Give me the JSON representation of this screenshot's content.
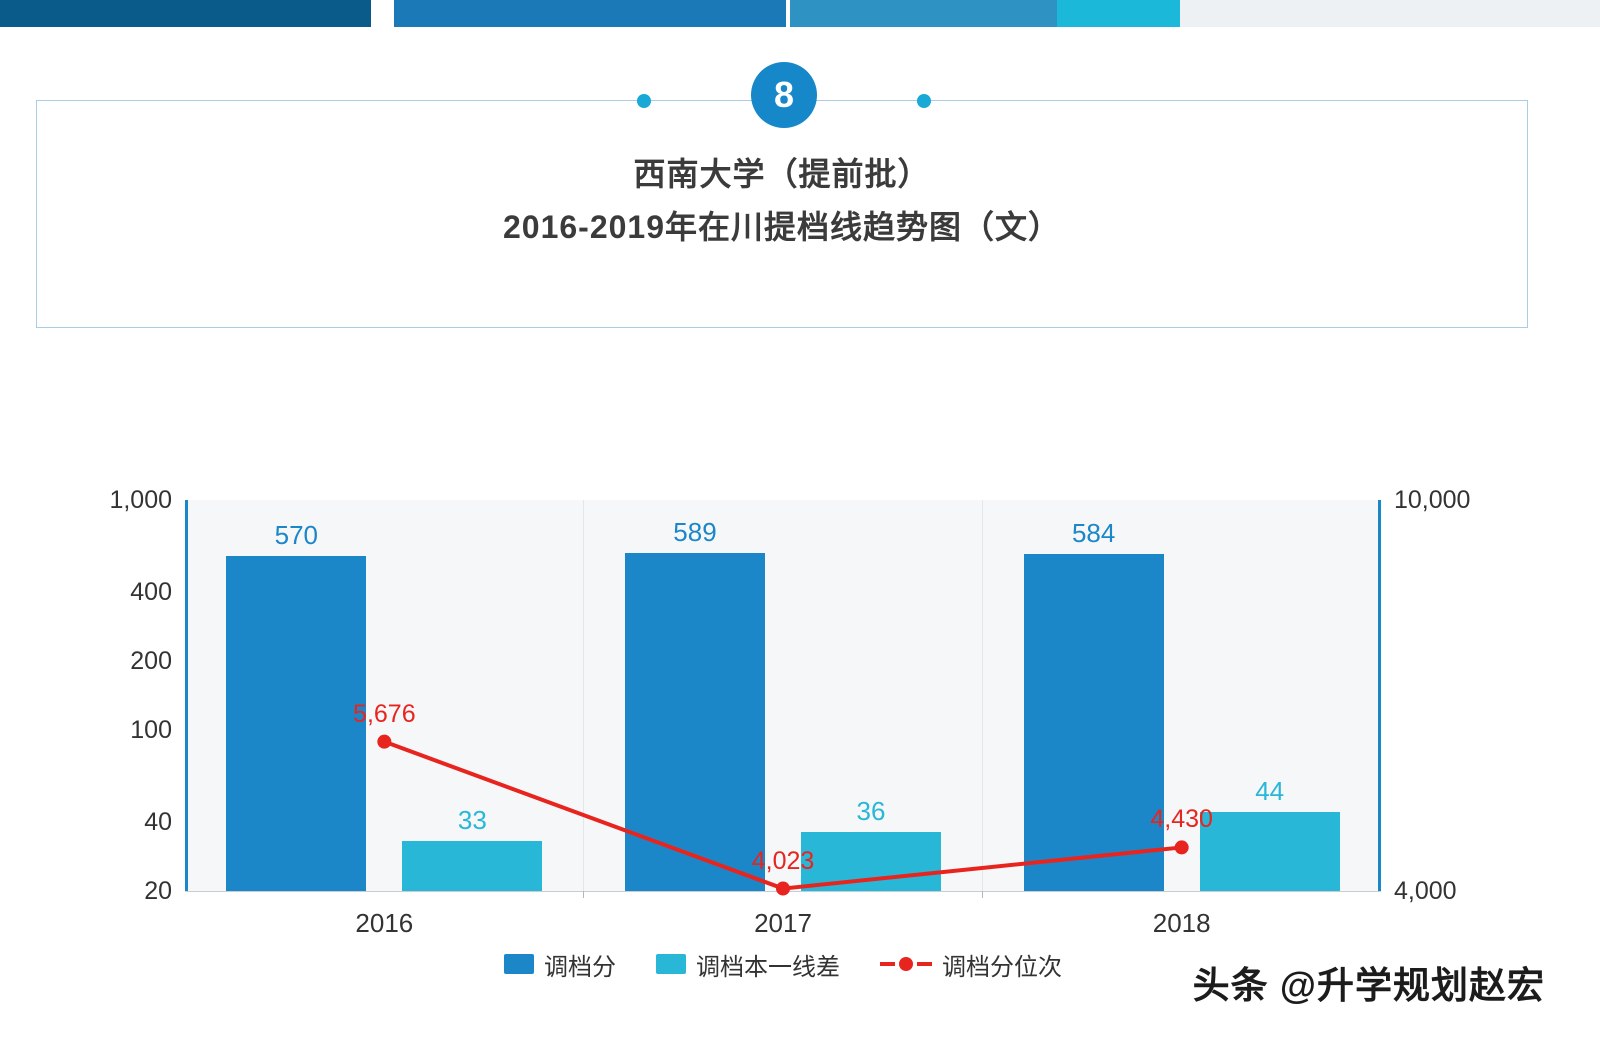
{
  "page": {
    "badge": "8",
    "title_line1": "西南大学（提前批）",
    "title_line2": "2016-2019年在川提档线趋势图（文）",
    "watermark": "头条 @升学规划赵宏"
  },
  "colors": {
    "bar_primary": "#1b87c9",
    "bar_secondary": "#29b7d8",
    "line_series": "#e8241f",
    "axis_line": "#1b87c9",
    "badge_bg": "#1688c9",
    "deco_dot": "#18a9d6",
    "plot_background": "#f6f7f8"
  },
  "chart_data": {
    "type": "bar",
    "subtype": "bar+line combo, dual log axes",
    "title": "西南大学（提前批）2016-2019年在川提档线趋势图（文）",
    "categories": [
      "2016",
      "2017",
      "2018"
    ],
    "series": [
      {
        "name": "调档分",
        "type": "bar",
        "axis": "left_axis",
        "color": "#1b87c9",
        "values": [
          570,
          589,
          584
        ],
        "labels": [
          "570",
          "589",
          "584"
        ]
      },
      {
        "name": "调档本一线差",
        "type": "bar",
        "axis": "left_axis",
        "color": "#29b7d8",
        "values": [
          33,
          36,
          44
        ],
        "labels": [
          "33",
          "36",
          "44"
        ]
      },
      {
        "name": "调档分位次",
        "type": "line",
        "axis": "right_axis",
        "color": "#e8241f",
        "values": [
          5676,
          4023,
          4430
        ],
        "labels": [
          "5,676",
          "4,023",
          "4,430"
        ]
      }
    ],
    "left_axis": {
      "scale": "log",
      "min": 20,
      "max": 1000,
      "ticks": [
        "1,000",
        "400",
        "200",
        "100",
        "40",
        "20"
      ],
      "tick_values": [
        1000,
        400,
        200,
        100,
        40,
        20
      ]
    },
    "right_axis": {
      "scale": "log",
      "min": 4000,
      "max": 10000,
      "ticks": [
        "10,000",
        "4,000"
      ],
      "tick_values": [
        10000,
        4000
      ]
    },
    "legend_position": "bottom",
    "grid": "vertical category separators only"
  }
}
